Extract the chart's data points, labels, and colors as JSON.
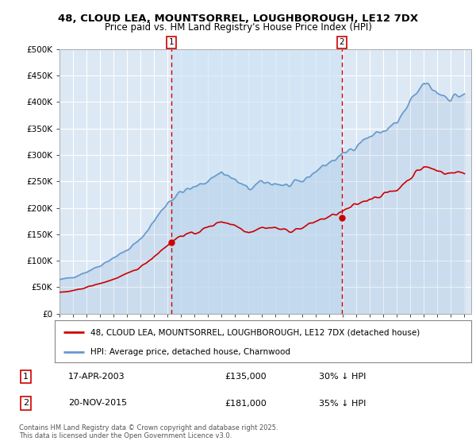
{
  "title": "48, CLOUD LEA, MOUNTSORREL, LOUGHBOROUGH, LE12 7DX",
  "subtitle": "Price paid vs. HM Land Registry's House Price Index (HPI)",
  "ylim": [
    0,
    500000
  ],
  "yticks": [
    0,
    50000,
    100000,
    150000,
    200000,
    250000,
    300000,
    350000,
    400000,
    450000,
    500000
  ],
  "ytick_labels": [
    "£0",
    "£50K",
    "£100K",
    "£150K",
    "£200K",
    "£250K",
    "£300K",
    "£350K",
    "£400K",
    "£450K",
    "£500K"
  ],
  "xlim_start": 1995.0,
  "xlim_end": 2025.5,
  "background_color": "#ffffff",
  "plot_bg_color": "#dde8f5",
  "grid_color": "#ffffff",
  "shade_color": "#ccddf0",
  "marker1_x": 2003.29,
  "marker1_y": 135000,
  "marker1_label": "1",
  "marker1_date": "17-APR-2003",
  "marker1_price": "£135,000",
  "marker1_hpi": "30% ↓ HPI",
  "marker2_x": 2015.9,
  "marker2_y": 181000,
  "marker2_label": "2",
  "marker2_date": "20-NOV-2015",
  "marker2_price": "£181,000",
  "marker2_hpi": "35% ↓ HPI",
  "red_line_color": "#cc0000",
  "blue_line_color": "#6699cc",
  "blue_fill_color": "#aabbdd",
  "dashed_line_color": "#cc0000",
  "legend_label_red": "48, CLOUD LEA, MOUNTSORREL, LOUGHBOROUGH, LE12 7DX (detached house)",
  "legend_label_blue": "HPI: Average price, detached house, Charnwood",
  "footer": "Contains HM Land Registry data © Crown copyright and database right 2025.\nThis data is licensed under the Open Government Licence v3.0.",
  "hpi_annual": [
    [
      1995,
      64000
    ],
    [
      1996,
      69000
    ],
    [
      1997,
      79000
    ],
    [
      1998,
      91000
    ],
    [
      1999,
      106000
    ],
    [
      2000,
      120000
    ],
    [
      2001,
      140000
    ],
    [
      2002,
      175000
    ],
    [
      2003,
      210000
    ],
    [
      2004,
      230000
    ],
    [
      2005,
      238000
    ],
    [
      2006,
      252000
    ],
    [
      2007,
      268000
    ],
    [
      2008,
      252000
    ],
    [
      2009,
      235000
    ],
    [
      2010,
      248000
    ],
    [
      2011,
      246000
    ],
    [
      2012,
      241000
    ],
    [
      2013,
      250000
    ],
    [
      2014,
      270000
    ],
    [
      2015,
      286000
    ],
    [
      2016,
      300000
    ],
    [
      2017,
      320000
    ],
    [
      2018,
      335000
    ],
    [
      2019,
      345000
    ],
    [
      2020,
      360000
    ],
    [
      2021,
      398000
    ],
    [
      2022,
      435000
    ],
    [
      2023,
      418000
    ],
    [
      2024,
      408000
    ],
    [
      2025,
      415000
    ]
  ],
  "red_annual": [
    [
      1995,
      40000
    ],
    [
      1996,
      43000
    ],
    [
      1997,
      50000
    ],
    [
      1998,
      57000
    ],
    [
      1999,
      65000
    ],
    [
      2000,
      75000
    ],
    [
      2001,
      88000
    ],
    [
      2002,
      108000
    ],
    [
      2003,
      130000
    ],
    [
      2004,
      148000
    ],
    [
      2005,
      152000
    ],
    [
      2006,
      163000
    ],
    [
      2007,
      175000
    ],
    [
      2008,
      167000
    ],
    [
      2009,
      154000
    ],
    [
      2010,
      163000
    ],
    [
      2011,
      162000
    ],
    [
      2012,
      156000
    ],
    [
      2013,
      162000
    ],
    [
      2014,
      175000
    ],
    [
      2015,
      183000
    ],
    [
      2016,
      193000
    ],
    [
      2017,
      206000
    ],
    [
      2018,
      218000
    ],
    [
      2019,
      225000
    ],
    [
      2020,
      234000
    ],
    [
      2021,
      258000
    ],
    [
      2022,
      278000
    ],
    [
      2023,
      270000
    ],
    [
      2024,
      265000
    ],
    [
      2025,
      268000
    ]
  ]
}
